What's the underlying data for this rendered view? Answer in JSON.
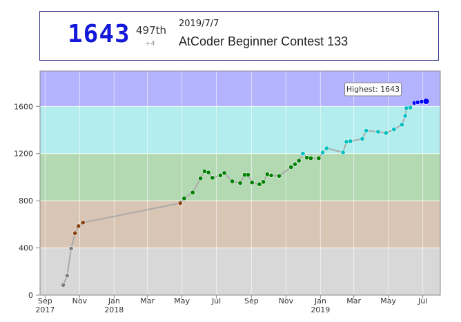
{
  "status": {
    "rating": "1643",
    "place": "497th",
    "diff": "+4",
    "date": "2019/7/7",
    "contest": "AtCoder Beginner Contest 133"
  },
  "tooltip": {
    "text": "Highest: 1643"
  },
  "colors": {
    "gray": "#d8d8d8",
    "brown": "#d9c5b3",
    "green": "#b3d9b3",
    "cyan": "#b3eded",
    "blue": "#b3b3fe",
    "dot_gray": "#808080",
    "dot_brown": "#8b4513",
    "dot_green": "#008000",
    "dot_cyan": "#00c0c0",
    "dot_blue": "#0000ff",
    "line": "#aaaaaa"
  },
  "chart_data": {
    "type": "line",
    "title": "",
    "xlabel": "",
    "ylabel": "",
    "ylim": [
      0,
      1600
    ],
    "y_ticks": [
      0,
      400,
      800,
      1200,
      1600
    ],
    "x_ticks": [
      {
        "label": "Sep",
        "year": "2017"
      },
      {
        "label": "Nov",
        "year": ""
      },
      {
        "label": "Jan",
        "year": "2018"
      },
      {
        "label": "Mar",
        "year": ""
      },
      {
        "label": "May",
        "year": ""
      },
      {
        "label": "Jul",
        "year": ""
      },
      {
        "label": "Sep",
        "year": ""
      },
      {
        "label": "Nov",
        "year": ""
      },
      {
        "label": "Jan",
        "year": "2019"
      },
      {
        "label": "Mar",
        "year": ""
      },
      {
        "label": "May",
        "year": ""
      },
      {
        "label": "Jul",
        "year": ""
      }
    ],
    "bands": [
      {
        "from": 0,
        "to": 400,
        "color": "gray"
      },
      {
        "from": 400,
        "to": 800,
        "color": "brown"
      },
      {
        "from": 800,
        "to": 1200,
        "color": "green"
      },
      {
        "from": 1200,
        "to": 1600,
        "color": "cyan"
      },
      {
        "from": 1600,
        "to": 1900,
        "color": "blue"
      }
    ],
    "series": [
      {
        "x": [
          "2017-10-03",
          "2017-10-10",
          "2017-10-17",
          "2017-10-24",
          "2017-10-30",
          "2017-11-07",
          "2018-04-28",
          "2018-05-05",
          "2018-05-20",
          "2018-06-03",
          "2018-06-10",
          "2018-06-17",
          "2018-06-24",
          "2018-07-08",
          "2018-07-15",
          "2018-07-29",
          "2018-08-12",
          "2018-08-20",
          "2018-08-26",
          "2018-09-02",
          "2018-09-15",
          "2018-09-22",
          "2018-09-29",
          "2018-10-06",
          "2018-10-20",
          "2018-11-10",
          "2018-11-17",
          "2018-11-24",
          "2018-12-01",
          "2018-12-08",
          "2018-12-15",
          "2018-12-29",
          "2019-01-05",
          "2019-01-12",
          "2019-02-10",
          "2019-02-16",
          "2019-02-23",
          "2019-03-16",
          "2019-03-23",
          "2019-04-13",
          "2019-04-27",
          "2019-05-11",
          "2019-05-25",
          "2019-05-31",
          "2019-06-02",
          "2019-06-09",
          "2019-06-16",
          "2019-06-22",
          "2019-06-29",
          "2019-07-07"
        ],
        "values": [
          85,
          165,
          395,
          525,
          585,
          615,
          780,
          820,
          870,
          990,
          1050,
          1040,
          995,
          1015,
          1035,
          965,
          950,
          1020,
          1020,
          955,
          940,
          960,
          1025,
          1015,
          1010,
          1085,
          1110,
          1140,
          1200,
          1165,
          1160,
          1160,
          1210,
          1245,
          1210,
          1300,
          1305,
          1325,
          1395,
          1385,
          1375,
          1405,
          1445,
          1520,
          1585,
          1590,
          1630,
          1635,
          1640,
          1643
        ]
      }
    ],
    "annotations": [
      "Highest: 1643"
    ]
  }
}
